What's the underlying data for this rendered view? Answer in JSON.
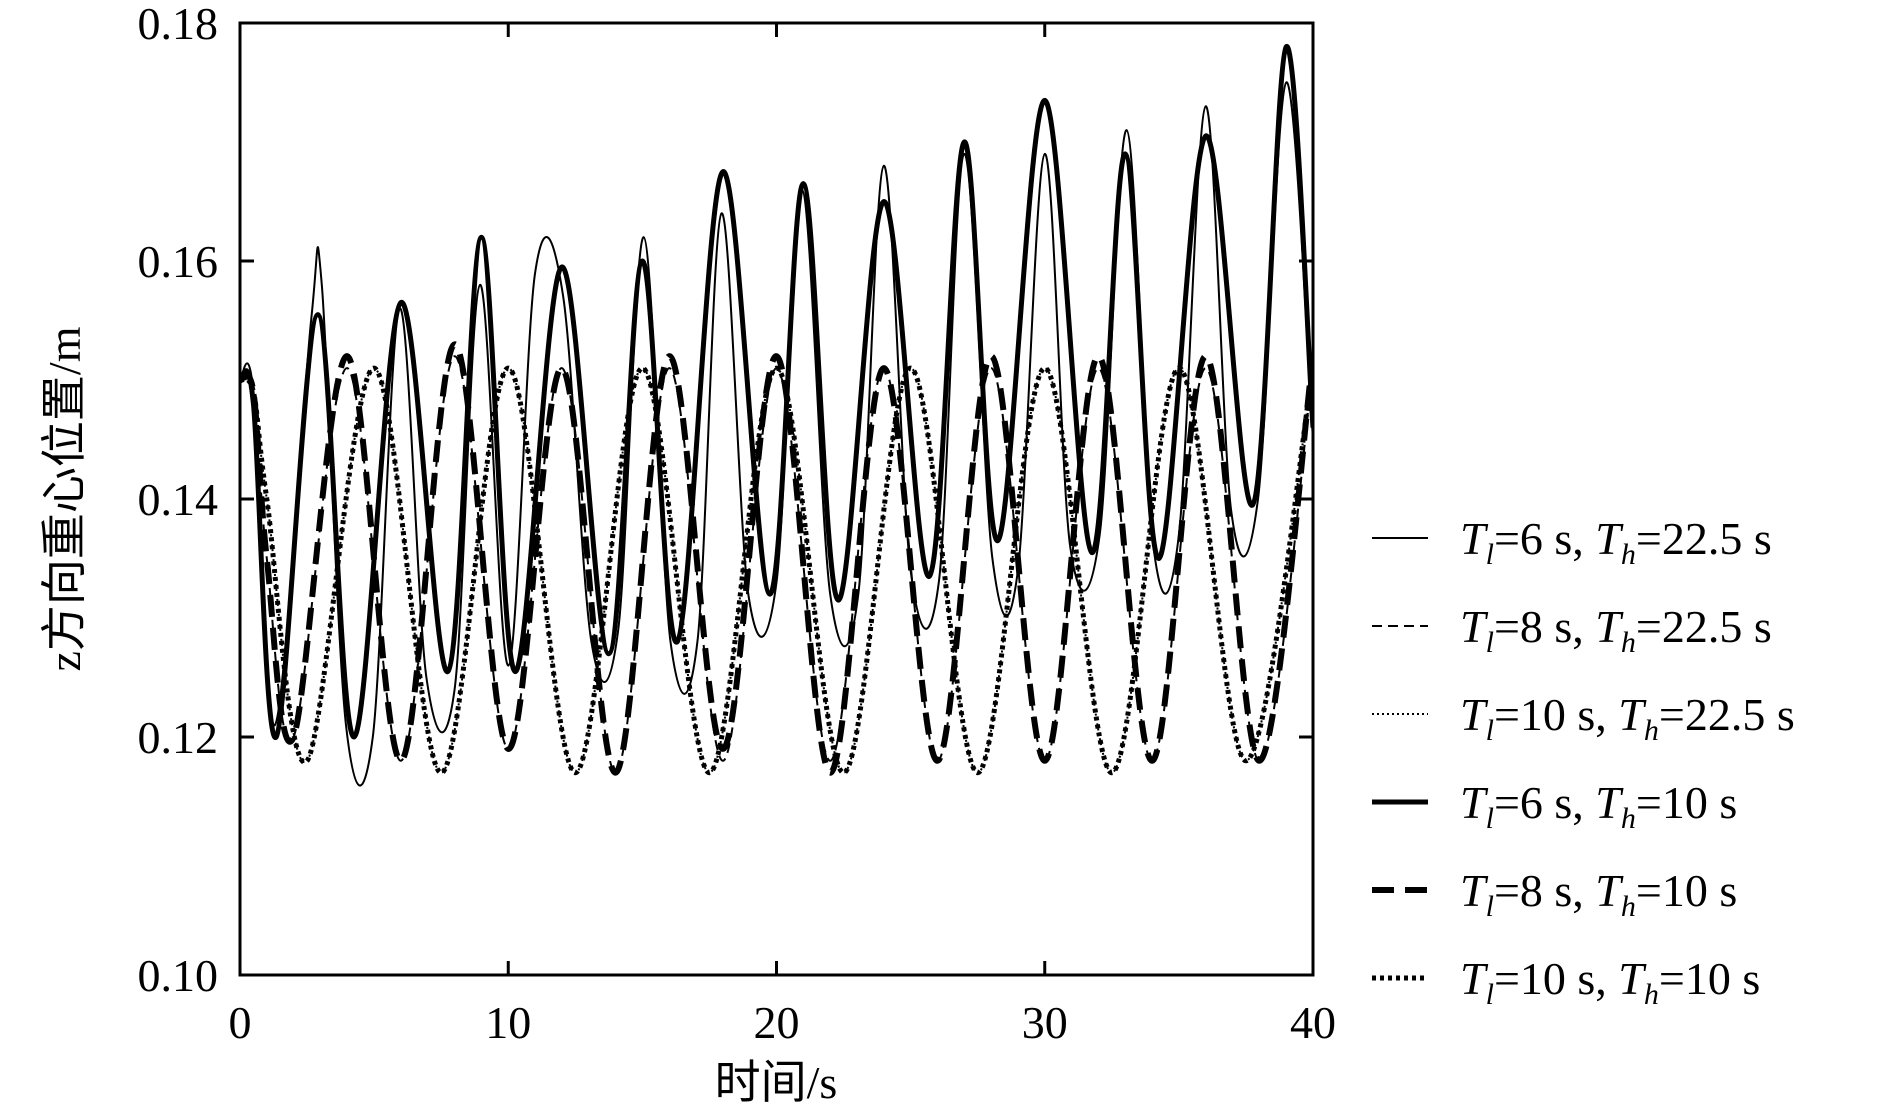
{
  "chart_data": {
    "type": "line",
    "title": "",
    "xlabel": "时间/s",
    "ylabel": "z方向重心位置/m",
    "xlim": [
      0,
      40
    ],
    "ylim": [
      0.1,
      0.18
    ],
    "xticks": [
      "0",
      "10",
      "20",
      "30",
      "40"
    ],
    "yticks": [
      "0.10",
      "0.12",
      "0.14",
      "0.16",
      "0.18"
    ],
    "grid": false,
    "legend_position": "right",
    "series": [
      {
        "name": "Tl=6 s, Th=22.5 s",
        "legend": {
          "Tsym": "T",
          "lsub": "l",
          "lval": "=6 s, ",
          "hsub": "h",
          "hval": "=22.5 s"
        },
        "style": "thin-solid",
        "x": [
          0,
          0.5,
          1.3,
          2.65,
          3.05,
          3.95,
          4.95,
          5.95,
          6.95,
          8.0,
          8.95,
          10.0,
          11.0,
          12.05,
          13.1,
          14.1,
          15.05,
          16.05,
          17.05,
          17.95,
          18.95,
          20.0,
          20.95,
          22.0,
          23.05,
          24.0,
          25.0,
          26.05,
          27.0,
          28.05,
          29.0,
          30.0,
          30.95,
          32.05,
          33.05,
          34.05,
          35.0,
          36.0,
          36.95,
          37.95,
          39.0,
          40.0
        ],
        "y": [
          0.15,
          0.149,
          0.121,
          0.155,
          0.158,
          0.121,
          0.12,
          0.156,
          0.125,
          0.124,
          0.158,
          0.126,
          0.159,
          0.157,
          0.128,
          0.129,
          0.162,
          0.128,
          0.128,
          0.164,
          0.132,
          0.133,
          0.166,
          0.132,
          0.132,
          0.168,
          0.134,
          0.133,
          0.169,
          0.135,
          0.134,
          0.169,
          0.136,
          0.137,
          0.171,
          0.136,
          0.137,
          0.173,
          0.139,
          0.14,
          0.175,
          0.145
        ]
      },
      {
        "name": "Tl=8 s, Th=22.5 s",
        "legend": {
          "Tsym": "T",
          "lsub": "l",
          "lval": "=8 s, ",
          "hsub": "h",
          "hval": "=22.5 s"
        },
        "style": "thin-dashed",
        "x": [
          0,
          0.5,
          1.0,
          2.0,
          4.0,
          6.0,
          8.0,
          10.0,
          12.0,
          14.0,
          16.0,
          18.0,
          20.0,
          22.0,
          24.0,
          26.0,
          28.0,
          30.0,
          32.0,
          34.0,
          36.0,
          38.0,
          40.0
        ],
        "y": [
          0.15,
          0.149,
          0.135,
          0.12,
          0.151,
          0.118,
          0.152,
          0.119,
          0.151,
          0.117,
          0.151,
          0.118,
          0.151,
          0.118,
          0.151,
          0.118,
          0.151,
          0.118,
          0.151,
          0.118,
          0.151,
          0.118,
          0.151
        ]
      },
      {
        "name": "Tl=10 s, Th=22.5 s",
        "legend": {
          "Tsym": "T",
          "lsub": "l",
          "lval": "=10 s, ",
          "hsub": "h",
          "hval": "=22.5 s"
        },
        "style": "thin-dotted",
        "x": [
          0,
          0.5,
          1.0,
          2.5,
          5.0,
          7.5,
          10.0,
          12.5,
          15.0,
          17.5,
          20.0,
          22.5,
          25.0,
          27.5,
          30.0,
          32.5,
          35.0,
          37.5,
          40.0
        ],
        "y": [
          0.15,
          0.149,
          0.14,
          0.118,
          0.151,
          0.117,
          0.151,
          0.117,
          0.151,
          0.117,
          0.151,
          0.117,
          0.151,
          0.117,
          0.151,
          0.117,
          0.151,
          0.118,
          0.151
        ]
      },
      {
        "name": "Tl=6 s, Th=10 s",
        "legend": {
          "Tsym": "T",
          "lsub": "l",
          "lval": "=6 s, ",
          "hsub": "h",
          "hval": "=10 s"
        },
        "style": "thick-solid",
        "x": [
          0,
          0.5,
          1.35,
          2.9,
          4.25,
          6.0,
          7.75,
          9.0,
          10.25,
          12.0,
          13.75,
          15.0,
          16.3,
          18.0,
          19.75,
          21.0,
          22.3,
          24.0,
          25.7,
          27.0,
          28.25,
          30.0,
          31.75,
          33.0,
          34.25,
          36.0,
          37.75,
          39.0,
          40.0
        ],
        "y": [
          0.15,
          0.148,
          0.12,
          0.1555,
          0.12,
          0.1565,
          0.1255,
          0.162,
          0.1255,
          0.1595,
          0.127,
          0.16,
          0.128,
          0.1675,
          0.132,
          0.1665,
          0.1315,
          0.165,
          0.1335,
          0.17,
          0.1365,
          0.1735,
          0.1355,
          0.169,
          0.135,
          0.1705,
          0.1395,
          0.178,
          0.146
        ]
      },
      {
        "name": "Tl=8 s, Th=10 s",
        "legend": {
          "Tsym": "T",
          "lsub": "l",
          "lval": "=8 s, ",
          "hsub": "h",
          "hval": "=10 s"
        },
        "style": "thick-dashed",
        "x": [
          0,
          0.5,
          1.0,
          2.0,
          4.0,
          6.0,
          8.0,
          10.0,
          12.0,
          14.0,
          16.0,
          18.0,
          20.0,
          22.0,
          24.0,
          26.0,
          28.0,
          30.0,
          32.0,
          34.0,
          36.0,
          38.0,
          40.0
        ],
        "y": [
          0.15,
          0.149,
          0.135,
          0.12,
          0.152,
          0.118,
          0.153,
          0.119,
          0.151,
          0.117,
          0.152,
          0.119,
          0.152,
          0.117,
          0.151,
          0.118,
          0.152,
          0.118,
          0.152,
          0.118,
          0.152,
          0.118,
          0.152
        ]
      },
      {
        "name": "Tl=10 s, Th=10 s",
        "legend": {
          "Tsym": "T",
          "lsub": "l",
          "lval": "=10 s, ",
          "hsub": "h",
          "hval": "=10 s"
        },
        "style": "thick-dotted",
        "x": [
          0,
          0.5,
          1.0,
          2.5,
          5.0,
          7.5,
          10.0,
          12.5,
          15.0,
          17.5,
          20.0,
          22.5,
          25.0,
          27.5,
          30.0,
          32.5,
          35.0,
          37.5,
          40.0
        ],
        "y": [
          0.15,
          0.149,
          0.14,
          0.118,
          0.151,
          0.117,
          0.151,
          0.117,
          0.151,
          0.117,
          0.151,
          0.117,
          0.151,
          0.117,
          0.151,
          0.117,
          0.151,
          0.118,
          0.151
        ]
      }
    ]
  }
}
